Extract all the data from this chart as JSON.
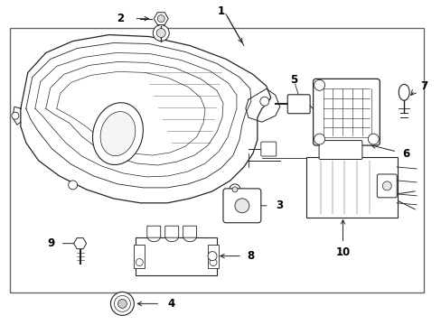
{
  "bg_color": "#ffffff",
  "border_color": "#444444",
  "line_color": "#222222",
  "label_color": "#000000",
  "fig_width": 4.89,
  "fig_height": 3.6,
  "dpi": 100
}
